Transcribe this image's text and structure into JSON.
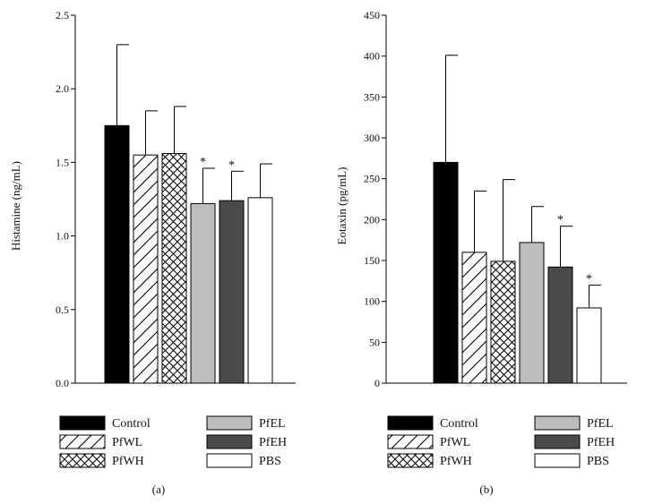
{
  "chart_data": [
    {
      "id": "a",
      "type": "bar",
      "panel_label": "(a)",
      "title": "",
      "xlabel": "",
      "ylabel": "Histamine (ng/mL)",
      "ylim": [
        0,
        2.5
      ],
      "yticks": [
        0.0,
        0.5,
        1.0,
        1.5,
        2.0,
        2.5
      ],
      "ytick_labels": [
        "0.0",
        "0.5",
        "1.0",
        "1.5",
        "2.0",
        "2.5"
      ],
      "categories": [
        "Control",
        "PfWL",
        "PfWH",
        "PfEL",
        "PfEH",
        "PBS"
      ],
      "values": [
        1.75,
        1.55,
        1.56,
        1.22,
        1.24,
        1.26
      ],
      "errors": [
        0.55,
        0.3,
        0.32,
        0.24,
        0.2,
        0.23
      ],
      "significant": [
        false,
        false,
        false,
        true,
        true,
        false
      ],
      "significance_marker": "*",
      "grid": false
    },
    {
      "id": "b",
      "type": "bar",
      "panel_label": "(b)",
      "title": "",
      "xlabel": "",
      "ylabel": "Eotaxin (pg/mL)",
      "ylim": [
        0,
        450
      ],
      "yticks": [
        0,
        50,
        100,
        150,
        200,
        250,
        300,
        350,
        400,
        450
      ],
      "ytick_labels": [
        "0",
        "50",
        "100",
        "150",
        "200",
        "250",
        "300",
        "350",
        "400",
        "450"
      ],
      "categories": [
        "Control",
        "PfWL",
        "PfWH",
        "PfEL",
        "PfEH",
        "PBS"
      ],
      "values": [
        270,
        160,
        149,
        172,
        142,
        92
      ],
      "errors": [
        131,
        75,
        100,
        44,
        50,
        28
      ],
      "significant": [
        false,
        false,
        false,
        false,
        true,
        true
      ],
      "significance_marker": "*",
      "grid": false
    }
  ],
  "legend": {
    "placement": "bottom",
    "entries": [
      {
        "label": "Control",
        "style": "black"
      },
      {
        "label": "PfWL",
        "style": "diagonal"
      },
      {
        "label": "PfWH",
        "style": "crosshatch"
      },
      {
        "label": "PfEL",
        "style": "lightgray"
      },
      {
        "label": "PfEH",
        "style": "darkgray"
      },
      {
        "label": "PBS",
        "style": "white"
      }
    ]
  },
  "colors": {
    "black": "#000000",
    "lightgray": "#bdbdbd",
    "darkgray": "#4a4a4a",
    "white": "#ffffff",
    "axis": "#000000"
  }
}
